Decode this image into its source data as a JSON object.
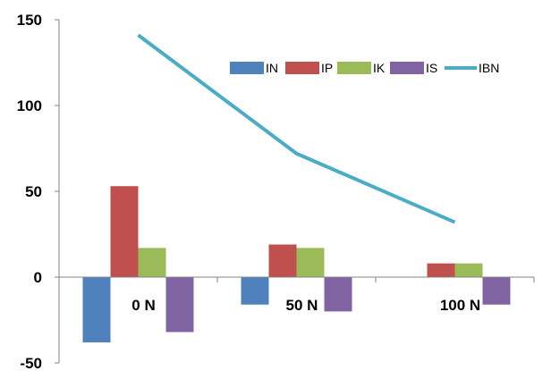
{
  "chart_data": {
    "type": "bar",
    "categories": [
      "0 N",
      "50 N",
      "100 N"
    ],
    "series": [
      {
        "name": "IN",
        "kind": "bar",
        "color": "#4F81BD",
        "values": [
          -38,
          -16,
          0
        ]
      },
      {
        "name": "IP",
        "kind": "bar",
        "color": "#C0504D",
        "values": [
          53,
          19,
          8
        ]
      },
      {
        "name": "IK",
        "kind": "bar",
        "color": "#9BBB59",
        "values": [
          17,
          17,
          8
        ]
      },
      {
        "name": "IS",
        "kind": "bar",
        "color": "#8064A2",
        "values": [
          -32,
          -20,
          -16
        ]
      },
      {
        "name": "IBN",
        "kind": "line",
        "color": "#4BACC6",
        "values": [
          141,
          72,
          32
        ]
      }
    ],
    "title": "",
    "xlabel": "",
    "ylabel": "",
    "ylim": [
      -50,
      150
    ],
    "yticks": [
      -50,
      0,
      50,
      100,
      150
    ],
    "grid": false,
    "legend_position": "top-right"
  }
}
